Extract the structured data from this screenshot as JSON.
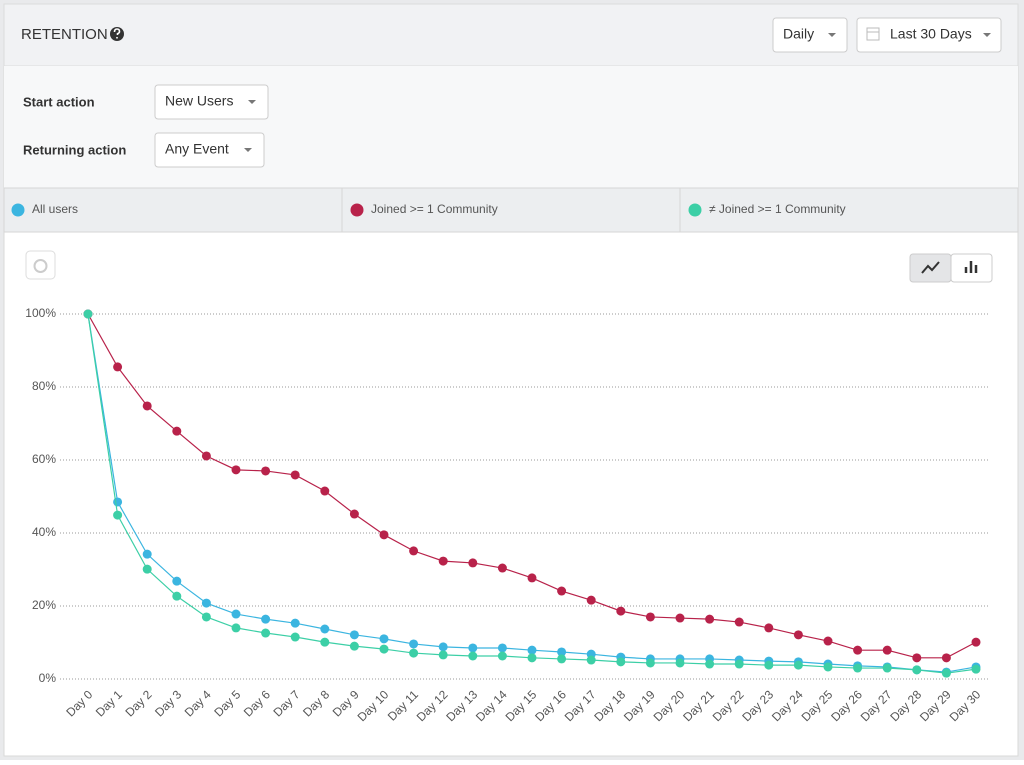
{
  "header": {
    "title": "RETENTION",
    "interval": "Daily",
    "range": "Last 30 Days"
  },
  "filters": {
    "start_label": "Start action",
    "start_value": "New Users",
    "return_label": "Returning action",
    "return_value": "Any Event"
  },
  "chart_data": {
    "type": "line",
    "categories": [
      "Day 0",
      "Day 1",
      "Day 2",
      "Day 3",
      "Day 4",
      "Day 5",
      "Day 6",
      "Day 7",
      "Day 8",
      "Day 9",
      "Day 10",
      "Day 11",
      "Day 12",
      "Day 13",
      "Day 14",
      "Day 15",
      "Day 16",
      "Day 17",
      "Day 18",
      "Day 19",
      "Day 20",
      "Day 21",
      "Day 22",
      "Day 23",
      "Day 24",
      "Day 25",
      "Day 26",
      "Day 27",
      "Day 28",
      "Day 29",
      "Day 30"
    ],
    "series": [
      {
        "name": "All users",
        "color": "#3bb5e0",
        "values": [
          100,
          48.5,
          34.2,
          26.8,
          20.8,
          17.8,
          16.4,
          15.3,
          13.7,
          12.1,
          11.0,
          9.6,
          8.8,
          8.5,
          8.5,
          7.9,
          7.4,
          6.8,
          6.0,
          5.5,
          5.5,
          5.5,
          5.2,
          4.9,
          4.7,
          4.1,
          3.6,
          3.3,
          2.5,
          1.9,
          3.3
        ]
      },
      {
        "name": "Joined >= 1 Community",
        "color": "#b8224a",
        "values": [
          100,
          85.5,
          74.8,
          67.9,
          61.1,
          57.3,
          57.0,
          55.9,
          51.5,
          45.2,
          39.5,
          35.1,
          32.3,
          31.8,
          30.4,
          27.7,
          24.1,
          21.6,
          18.6,
          17.0,
          16.7,
          16.4,
          15.6,
          14.0,
          12.1,
          10.4,
          7.9,
          7.9,
          5.8,
          5.8,
          10.1
        ]
      },
      {
        "name": "≠ Joined >= 1 Community",
        "color": "#3ccfa6",
        "values": [
          100,
          44.9,
          30.1,
          22.7,
          17.0,
          14.0,
          12.6,
          11.5,
          10.1,
          9.0,
          8.2,
          7.1,
          6.6,
          6.3,
          6.3,
          5.8,
          5.5,
          5.2,
          4.7,
          4.4,
          4.4,
          4.1,
          4.1,
          3.8,
          3.8,
          3.3,
          3.0,
          3.0,
          2.5,
          1.6,
          2.7
        ]
      }
    ],
    "ylim": [
      0,
      100
    ],
    "yticks": [
      {
        "value": 0,
        "label": "0%"
      },
      {
        "value": 20,
        "label": "20%"
      },
      {
        "value": 40,
        "label": "40%"
      },
      {
        "value": 60,
        "label": "60%"
      },
      {
        "value": 80,
        "label": "80%"
      },
      {
        "value": 100,
        "label": "100%"
      }
    ],
    "grid": true
  }
}
